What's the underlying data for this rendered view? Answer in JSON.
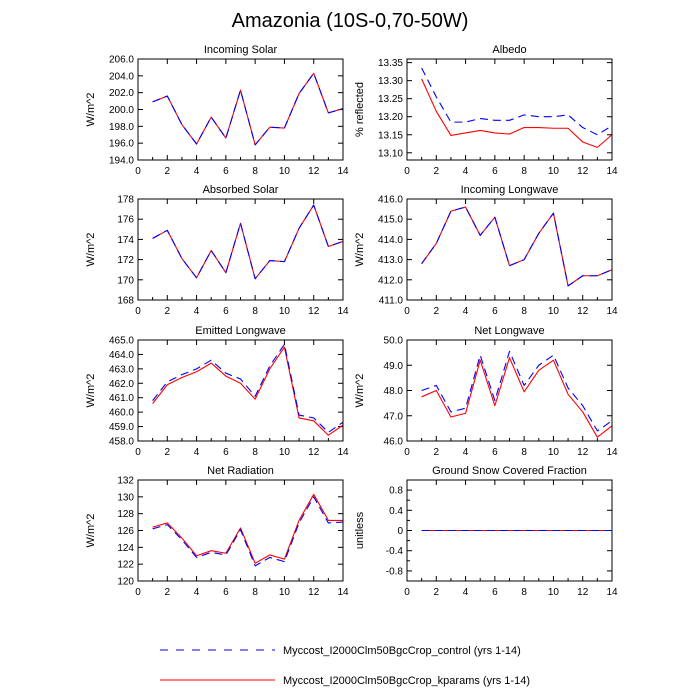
{
  "title": "Amazonia (10S-0,70-50W)",
  "legend": [
    {
      "name": "Myccost_I2000Clm50BgcCrop_control (yrs 1-14)",
      "color": "#0000ff",
      "dash": "dashed"
    },
    {
      "name": "Myccost_I2000Clm50BgcCrop_kparams (yrs 1-14)",
      "color": "#ff0000",
      "dash": "solid"
    }
  ],
  "chart_data": [
    {
      "type": "line",
      "title": "Incoming Solar",
      "ylabel": "W/m^2",
      "xlim": [
        0,
        14
      ],
      "xticks": [
        0,
        2,
        4,
        6,
        8,
        10,
        12,
        14
      ],
      "xtick_labels": [
        "0",
        "2",
        "4",
        "6",
        "8",
        "10",
        "12",
        "14"
      ],
      "ylim": [
        194,
        206
      ],
      "yticks": [
        194,
        196,
        198,
        200,
        202,
        204,
        206
      ],
      "ytick_labels": [
        "194.0",
        "196.0",
        "198.0",
        "200.0",
        "202.0",
        "204.0",
        "206.0"
      ],
      "x": [
        1,
        2,
        3,
        4,
        5,
        6,
        7,
        8,
        9,
        10,
        11,
        12,
        13,
        14
      ],
      "series": [
        {
          "name": "control",
          "values": [
            200.9,
            201.6,
            198.2,
            195.9,
            199.1,
            196.6,
            202.3,
            195.8,
            197.9,
            197.8,
            201.9,
            204.3,
            199.6,
            200.1
          ]
        },
        {
          "name": "kparams",
          "values": [
            200.9,
            201.6,
            198.2,
            195.9,
            199.1,
            196.6,
            202.3,
            195.8,
            197.9,
            197.8,
            201.9,
            204.3,
            199.6,
            200.1
          ]
        }
      ]
    },
    {
      "type": "line",
      "title": "Albedo",
      "ylabel": "% reflected",
      "xlim": [
        0,
        14
      ],
      "xticks": [
        0,
        2,
        4,
        6,
        8,
        10,
        12,
        14
      ],
      "xtick_labels": [
        "0",
        "2",
        "4",
        "6",
        "8",
        "10",
        "12",
        "14"
      ],
      "ylim": [
        13.08,
        13.36
      ],
      "yticks": [
        13.1,
        13.15,
        13.2,
        13.25,
        13.3,
        13.35
      ],
      "ytick_labels": [
        "13.10",
        "13.15",
        "13.20",
        "13.25",
        "13.30",
        "13.35"
      ],
      "x": [
        1,
        2,
        3,
        4,
        5,
        6,
        7,
        8,
        9,
        10,
        11,
        12,
        13,
        14
      ],
      "series": [
        {
          "name": "control",
          "values": [
            13.335,
            13.255,
            13.185,
            13.185,
            13.195,
            13.19,
            13.19,
            13.205,
            13.2,
            13.2,
            13.205,
            13.17,
            13.15,
            13.175
          ]
        },
        {
          "name": "kparams",
          "values": [
            13.305,
            13.215,
            13.148,
            13.155,
            13.162,
            13.155,
            13.152,
            13.17,
            13.17,
            13.168,
            13.168,
            13.13,
            13.115,
            13.15
          ]
        }
      ]
    },
    {
      "type": "line",
      "title": "Absorbed Solar",
      "ylabel": "W/m^2",
      "xlim": [
        0,
        14
      ],
      "xticks": [
        0,
        2,
        4,
        6,
        8,
        10,
        12,
        14
      ],
      "xtick_labels": [
        "0",
        "2",
        "4",
        "6",
        "8",
        "10",
        "12",
        "14"
      ],
      "ylim": [
        168,
        178
      ],
      "yticks": [
        168,
        170,
        172,
        174,
        176,
        178
      ],
      "ytick_labels": [
        "168",
        "170",
        "172",
        "174",
        "176",
        "178"
      ],
      "x": [
        1,
        2,
        3,
        4,
        5,
        6,
        7,
        8,
        9,
        10,
        11,
        12,
        13,
        14
      ],
      "series": [
        {
          "name": "control",
          "values": [
            174.1,
            174.9,
            172.1,
            170.2,
            172.9,
            170.7,
            175.6,
            170.1,
            171.9,
            171.8,
            175.1,
            177.4,
            173.3,
            173.8
          ]
        },
        {
          "name": "kparams",
          "values": [
            174.1,
            174.9,
            172.1,
            170.2,
            172.9,
            170.7,
            175.6,
            170.1,
            171.9,
            171.8,
            175.1,
            177.4,
            173.3,
            173.8
          ]
        }
      ]
    },
    {
      "type": "line",
      "title": "Incoming Longwave",
      "ylabel": "W/m^2",
      "xlim": [
        0,
        14
      ],
      "xticks": [
        0,
        2,
        4,
        6,
        8,
        10,
        12,
        14
      ],
      "xtick_labels": [
        "0",
        "2",
        "4",
        "6",
        "8",
        "10",
        "12",
        "14"
      ],
      "ylim": [
        411,
        416
      ],
      "yticks": [
        411,
        412,
        413,
        414,
        415,
        416
      ],
      "ytick_labels": [
        "411.0",
        "412.0",
        "413.0",
        "414.0",
        "415.0",
        "416.0"
      ],
      "x": [
        1,
        2,
        3,
        4,
        5,
        6,
        7,
        8,
        9,
        10,
        11,
        12,
        13,
        14
      ],
      "series": [
        {
          "name": "control",
          "values": [
            412.8,
            413.8,
            415.4,
            415.6,
            414.2,
            415.1,
            412.7,
            413.0,
            414.3,
            415.3,
            411.7,
            412.2,
            412.2,
            412.5
          ]
        },
        {
          "name": "kparams",
          "values": [
            412.8,
            413.8,
            415.4,
            415.6,
            414.2,
            415.1,
            412.7,
            413.0,
            414.3,
            415.3,
            411.7,
            412.2,
            412.2,
            412.5
          ]
        }
      ]
    },
    {
      "type": "line",
      "title": "Emitted Longwave",
      "ylabel": "W/m^2",
      "xlim": [
        0,
        14
      ],
      "xticks": [
        0,
        2,
        4,
        6,
        8,
        10,
        12,
        14
      ],
      "xtick_labels": [
        "0",
        "2",
        "4",
        "6",
        "8",
        "10",
        "12",
        "14"
      ],
      "ylim": [
        458,
        465
      ],
      "yticks": [
        458,
        459,
        460,
        461,
        462,
        463,
        464,
        465
      ],
      "ytick_labels": [
        "458.0",
        "459.0",
        "460.0",
        "461.0",
        "462.0",
        "463.0",
        "464.0",
        "465.0"
      ],
      "x": [
        1,
        2,
        3,
        4,
        5,
        6,
        7,
        8,
        9,
        10,
        11,
        12,
        13,
        14
      ],
      "series": [
        {
          "name": "control",
          "values": [
            460.8,
            462.1,
            462.6,
            463.0,
            463.6,
            462.7,
            462.3,
            461.1,
            463.2,
            464.7,
            459.8,
            459.6,
            458.6,
            459.3
          ]
        },
        {
          "name": "kparams",
          "values": [
            460.6,
            461.9,
            462.4,
            462.8,
            463.4,
            462.5,
            462.0,
            460.9,
            463.0,
            464.5,
            459.6,
            459.4,
            458.4,
            459.1
          ]
        }
      ]
    },
    {
      "type": "line",
      "title": "Net Longwave",
      "ylabel": "W/m^2",
      "xlim": [
        0,
        14
      ],
      "xticks": [
        0,
        2,
        4,
        6,
        8,
        10,
        12,
        14
      ],
      "xtick_labels": [
        "0",
        "2",
        "4",
        "6",
        "8",
        "10",
        "12",
        "14"
      ],
      "ylim": [
        46,
        50
      ],
      "yticks": [
        46,
        47,
        48,
        49,
        50
      ],
      "ytick_labels": [
        "46.0",
        "47.0",
        "48.0",
        "49.0",
        "50.0"
      ],
      "x": [
        1,
        2,
        3,
        4,
        5,
        6,
        7,
        8,
        9,
        10,
        11,
        12,
        13,
        14
      ],
      "series": [
        {
          "name": "control",
          "values": [
            48.0,
            48.2,
            47.15,
            47.3,
            49.4,
            47.6,
            49.55,
            48.2,
            49.0,
            49.4,
            48.1,
            47.4,
            46.4,
            46.8
          ]
        },
        {
          "name": "kparams",
          "values": [
            47.75,
            48.0,
            46.95,
            47.1,
            49.2,
            47.4,
            49.3,
            47.95,
            48.8,
            49.2,
            47.85,
            47.15,
            46.15,
            46.6
          ]
        }
      ]
    },
    {
      "type": "line",
      "title": "Net Radiation",
      "ylabel": "W/m^2",
      "xlim": [
        0,
        14
      ],
      "xticks": [
        0,
        2,
        4,
        6,
        8,
        10,
        12,
        14
      ],
      "xtick_labels": [
        "0",
        "2",
        "4",
        "6",
        "8",
        "10",
        "12",
        "14"
      ],
      "ylim": [
        120,
        132
      ],
      "yticks": [
        120,
        122,
        124,
        126,
        128,
        130,
        132
      ],
      "ytick_labels": [
        "120",
        "122",
        "124",
        "126",
        "128",
        "130",
        "132"
      ],
      "x": [
        1,
        2,
        3,
        4,
        5,
        6,
        7,
        8,
        9,
        10,
        11,
        12,
        13,
        14
      ],
      "series": [
        {
          "name": "control",
          "values": [
            126.2,
            126.7,
            124.9,
            122.8,
            123.4,
            123.1,
            126.1,
            121.8,
            122.8,
            122.3,
            126.9,
            130.0,
            126.9,
            127.0
          ]
        },
        {
          "name": "kparams",
          "values": [
            126.4,
            126.9,
            125.1,
            123.0,
            123.6,
            123.3,
            126.3,
            122.1,
            123.1,
            122.6,
            127.2,
            130.3,
            127.2,
            127.2
          ]
        }
      ]
    },
    {
      "type": "line",
      "title": "Ground Snow Covered Fraction",
      "ylabel": "unitless",
      "xlim": [
        0,
        14
      ],
      "xticks": [
        0,
        2,
        4,
        6,
        8,
        10,
        12,
        14
      ],
      "xtick_labels": [
        "0",
        "2",
        "4",
        "6",
        "8",
        "10",
        "12",
        "14"
      ],
      "ylim": [
        -1,
        1
      ],
      "yticks": [
        -0.8,
        -0.4,
        0,
        0.4,
        0.8
      ],
      "ytick_labels": [
        "-0.8",
        "-0.4",
        "0",
        "0.4",
        "0.8"
      ],
      "minor_yticks": [
        -1,
        -0.6,
        -0.2,
        0.2,
        0.6,
        1
      ],
      "x": [
        1,
        2,
        3,
        4,
        5,
        6,
        7,
        8,
        9,
        10,
        11,
        12,
        13,
        14
      ],
      "series": [
        {
          "name": "control",
          "values": [
            0,
            0,
            0,
            0,
            0,
            0,
            0,
            0,
            0,
            0,
            0,
            0,
            0,
            0
          ]
        },
        {
          "name": "kparams",
          "values": [
            0,
            0,
            0,
            0,
            0,
            0,
            0,
            0,
            0,
            0,
            0,
            0,
            0,
            0
          ]
        }
      ]
    }
  ]
}
